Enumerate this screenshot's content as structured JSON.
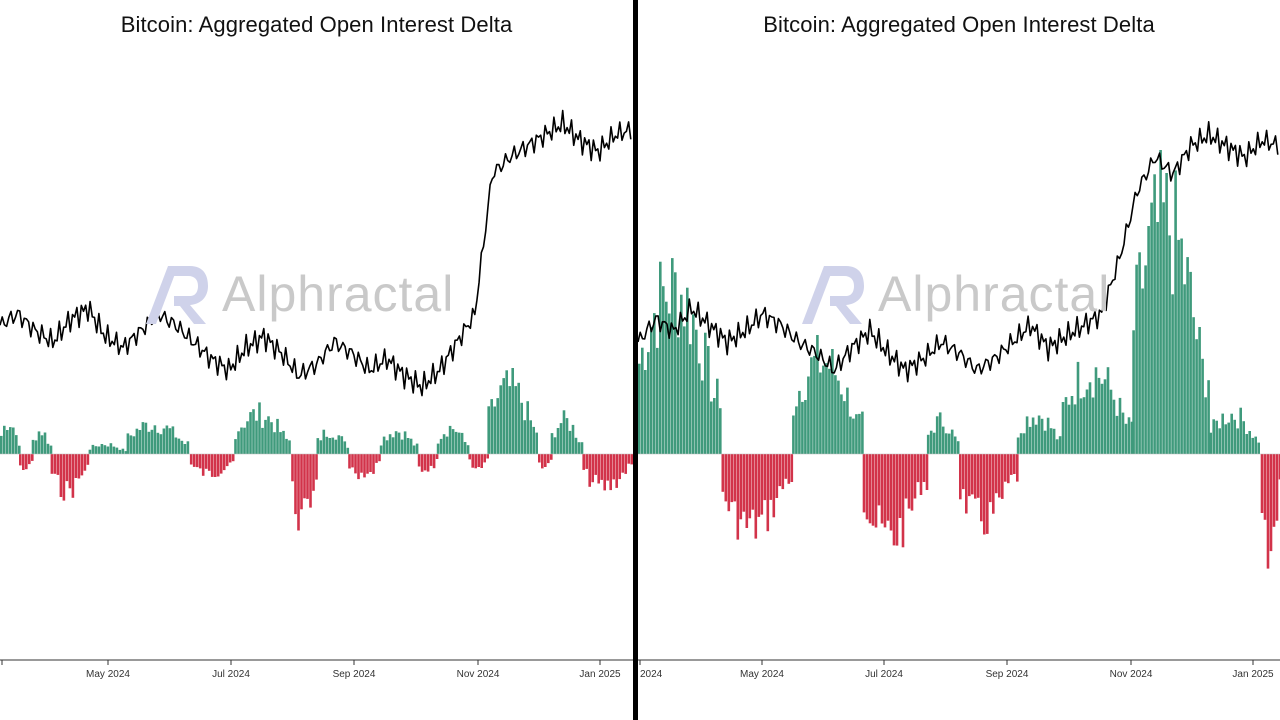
{
  "watermark": {
    "text": "Alphractal",
    "color": "#c9c9c9"
  },
  "colors": {
    "positive": "#3f9a7c",
    "negative": "#d2334a",
    "price": "#000000",
    "divider": "#000000"
  },
  "chart_data": [
    {
      "type": "bar",
      "title": "Bitcoin: Aggregated Open Interest Delta",
      "x_tick_labels": [
        "",
        "May 2024",
        "Jul 2024",
        "Sep 2024",
        "Nov 2024",
        "Jan 2025"
      ],
      "series": [
        {
          "name": "",
          "kind": "bar",
          "values_by_segment": [
            {
              "from": 0.0,
              "to": 0.03,
              "level": 0.1
            },
            {
              "from": 0.03,
              "to": 0.05,
              "level": -0.05
            },
            {
              "from": 0.05,
              "to": 0.08,
              "level": 0.07
            },
            {
              "from": 0.08,
              "to": 0.14,
              "level": -0.11
            },
            {
              "from": 0.14,
              "to": 0.2,
              "level": 0.03
            },
            {
              "from": 0.2,
              "to": 0.3,
              "level": 0.09
            },
            {
              "from": 0.3,
              "to": 0.37,
              "level": -0.06
            },
            {
              "from": 0.37,
              "to": 0.46,
              "level": 0.12
            },
            {
              "from": 0.46,
              "to": 0.5,
              "level": -0.2
            },
            {
              "from": 0.5,
              "to": 0.55,
              "level": 0.07
            },
            {
              "from": 0.55,
              "to": 0.6,
              "level": -0.08
            },
            {
              "from": 0.6,
              "to": 0.66,
              "level": 0.07
            },
            {
              "from": 0.66,
              "to": 0.69,
              "level": -0.06
            },
            {
              "from": 0.69,
              "to": 0.74,
              "level": 0.08
            },
            {
              "from": 0.74,
              "to": 0.77,
              "level": -0.04
            },
            {
              "from": 0.77,
              "to": 0.85,
              "level": 0.2
            },
            {
              "from": 0.85,
              "to": 0.87,
              "level": -0.04
            },
            {
              "from": 0.87,
              "to": 0.92,
              "level": 0.1
            },
            {
              "from": 0.92,
              "to": 1.0,
              "level": -0.1
            }
          ]
        },
        {
          "name": "",
          "kind": "line",
          "values": [
            0.58,
            0.6,
            0.57,
            0.55,
            0.59,
            0.61,
            0.56,
            0.54,
            0.57,
            0.6,
            0.58,
            0.55,
            0.52,
            0.5,
            0.54,
            0.56,
            0.53,
            0.49,
            0.51,
            0.55,
            0.53,
            0.5,
            0.52,
            0.49,
            0.47,
            0.5,
            0.55,
            0.6,
            0.85,
            0.88,
            0.9,
            0.92,
            0.94,
            0.91,
            0.89,
            0.92,
            0.93
          ]
        }
      ],
      "xlabel": "",
      "ylabel": "",
      "grid": false
    },
    {
      "type": "bar",
      "title": "Bitcoin: Aggregated Open Interest Delta",
      "x_tick_labels": [
        "2024",
        "May 2024",
        "Jul 2024",
        "Sep 2024",
        "Nov 2024",
        "Jan 2025"
      ],
      "series": [
        {
          "name": "",
          "kind": "bar",
          "values_by_segment": [
            {
              "from": 0.0,
              "to": 0.13,
              "level": 0.5
            },
            {
              "from": 0.13,
              "to": 0.24,
              "level": -0.22
            },
            {
              "from": 0.24,
              "to": 0.35,
              "level": 0.28
            },
            {
              "from": 0.35,
              "to": 0.45,
              "level": -0.25
            },
            {
              "from": 0.45,
              "to": 0.5,
              "level": 0.1
            },
            {
              "from": 0.5,
              "to": 0.59,
              "level": -0.2
            },
            {
              "from": 0.59,
              "to": 0.66,
              "level": 0.12
            },
            {
              "from": 0.66,
              "to": 0.77,
              "level": 0.25
            },
            {
              "from": 0.77,
              "to": 0.89,
              "level": 0.7
            },
            {
              "from": 0.89,
              "to": 0.97,
              "level": 0.12
            },
            {
              "from": 0.97,
              "to": 1.0,
              "level": -0.28
            }
          ]
        },
        {
          "name": "",
          "kind": "line",
          "values": [
            0.55,
            0.59,
            0.57,
            0.61,
            0.58,
            0.55,
            0.57,
            0.6,
            0.58,
            0.55,
            0.53,
            0.5,
            0.54,
            0.57,
            0.53,
            0.5,
            0.52,
            0.55,
            0.53,
            0.5,
            0.52,
            0.55,
            0.58,
            0.54,
            0.56,
            0.58,
            0.6,
            0.7,
            0.82,
            0.88,
            0.85,
            0.9,
            0.92,
            0.9,
            0.88,
            0.91,
            0.9
          ]
        }
      ],
      "xlabel": "",
      "ylabel": "",
      "grid": false
    }
  ]
}
